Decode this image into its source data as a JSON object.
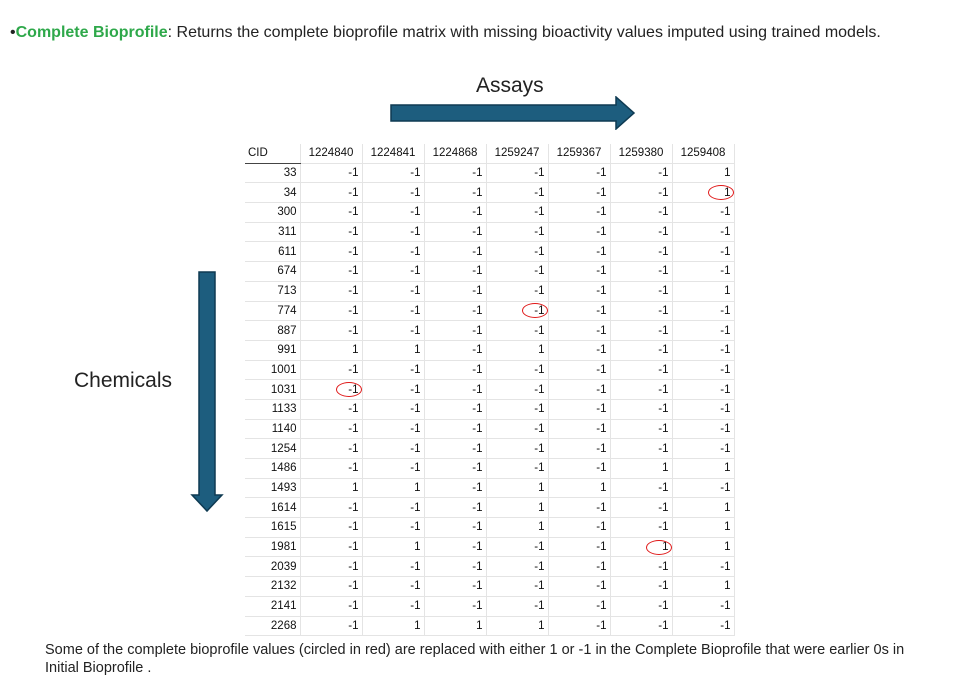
{
  "heading": {
    "bullet": "•",
    "term": "Complete Bioprofile",
    "text": ": Returns the complete bioprofile matrix with missing bioactivity values imputed using trained models."
  },
  "labels": {
    "assays": "Assays",
    "chemicals": "Chemicals"
  },
  "colors": {
    "term": "#2ea84a",
    "arrow": "#1d5d7e",
    "circle": "#e01a1a"
  },
  "table": {
    "columns": [
      "CID",
      "1224840",
      "1224841",
      "1224868",
      "1259247",
      "1259367",
      "1259380",
      "1259408"
    ],
    "rows": [
      [
        "33",
        "-1",
        "-1",
        "-1",
        "-1",
        "-1",
        "-1",
        "1"
      ],
      [
        "34",
        "-1",
        "-1",
        "-1",
        "-1",
        "-1",
        "-1",
        "1"
      ],
      [
        "300",
        "-1",
        "-1",
        "-1",
        "-1",
        "-1",
        "-1",
        "-1"
      ],
      [
        "311",
        "-1",
        "-1",
        "-1",
        "-1",
        "-1",
        "-1",
        "-1"
      ],
      [
        "611",
        "-1",
        "-1",
        "-1",
        "-1",
        "-1",
        "-1",
        "-1"
      ],
      [
        "674",
        "-1",
        "-1",
        "-1",
        "-1",
        "-1",
        "-1",
        "-1"
      ],
      [
        "713",
        "-1",
        "-1",
        "-1",
        "-1",
        "-1",
        "-1",
        "1"
      ],
      [
        "774",
        "-1",
        "-1",
        "-1",
        "-1",
        "-1",
        "-1",
        "-1"
      ],
      [
        "887",
        "-1",
        "-1",
        "-1",
        "-1",
        "-1",
        "-1",
        "-1"
      ],
      [
        "991",
        "1",
        "1",
        "-1",
        "1",
        "-1",
        "-1",
        "-1"
      ],
      [
        "1001",
        "-1",
        "-1",
        "-1",
        "-1",
        "-1",
        "-1",
        "-1"
      ],
      [
        "1031",
        "-1",
        "-1",
        "-1",
        "-1",
        "-1",
        "-1",
        "-1"
      ],
      [
        "1133",
        "-1",
        "-1",
        "-1",
        "-1",
        "-1",
        "-1",
        "-1"
      ],
      [
        "1140",
        "-1",
        "-1",
        "-1",
        "-1",
        "-1",
        "-1",
        "-1"
      ],
      [
        "1254",
        "-1",
        "-1",
        "-1",
        "-1",
        "-1",
        "-1",
        "-1"
      ],
      [
        "1486",
        "-1",
        "-1",
        "-1",
        "-1",
        "-1",
        "1",
        "1"
      ],
      [
        "1493",
        "1",
        "1",
        "-1",
        "1",
        "1",
        "-1",
        "-1"
      ],
      [
        "1614",
        "-1",
        "-1",
        "-1",
        "1",
        "-1",
        "-1",
        "1"
      ],
      [
        "1615",
        "-1",
        "-1",
        "-1",
        "1",
        "-1",
        "-1",
        "1"
      ],
      [
        "1981",
        "-1",
        "1",
        "-1",
        "-1",
        "-1",
        "1",
        "1"
      ],
      [
        "2039",
        "-1",
        "-1",
        "-1",
        "-1",
        "-1",
        "-1",
        "-1"
      ],
      [
        "2132",
        "-1",
        "-1",
        "-1",
        "-1",
        "-1",
        "-1",
        "1"
      ],
      [
        "2141",
        "-1",
        "-1",
        "-1",
        "-1",
        "-1",
        "-1",
        "-1"
      ],
      [
        "2268",
        "-1",
        "1",
        "1",
        "1",
        "-1",
        "-1",
        "-1"
      ]
    ],
    "circled_cells": [
      {
        "cid": "34",
        "column": "1259408"
      },
      {
        "cid": "774",
        "column": "1259247"
      },
      {
        "cid": "1031",
        "column": "1224840"
      },
      {
        "cid": "1981",
        "column": "1259380"
      }
    ]
  },
  "footnote": "Some of the complete bioprofile values (circled in red) are replaced with either 1 or -1 in the Complete Bioprofile that were earlier 0s in Initial Bioprofile ."
}
